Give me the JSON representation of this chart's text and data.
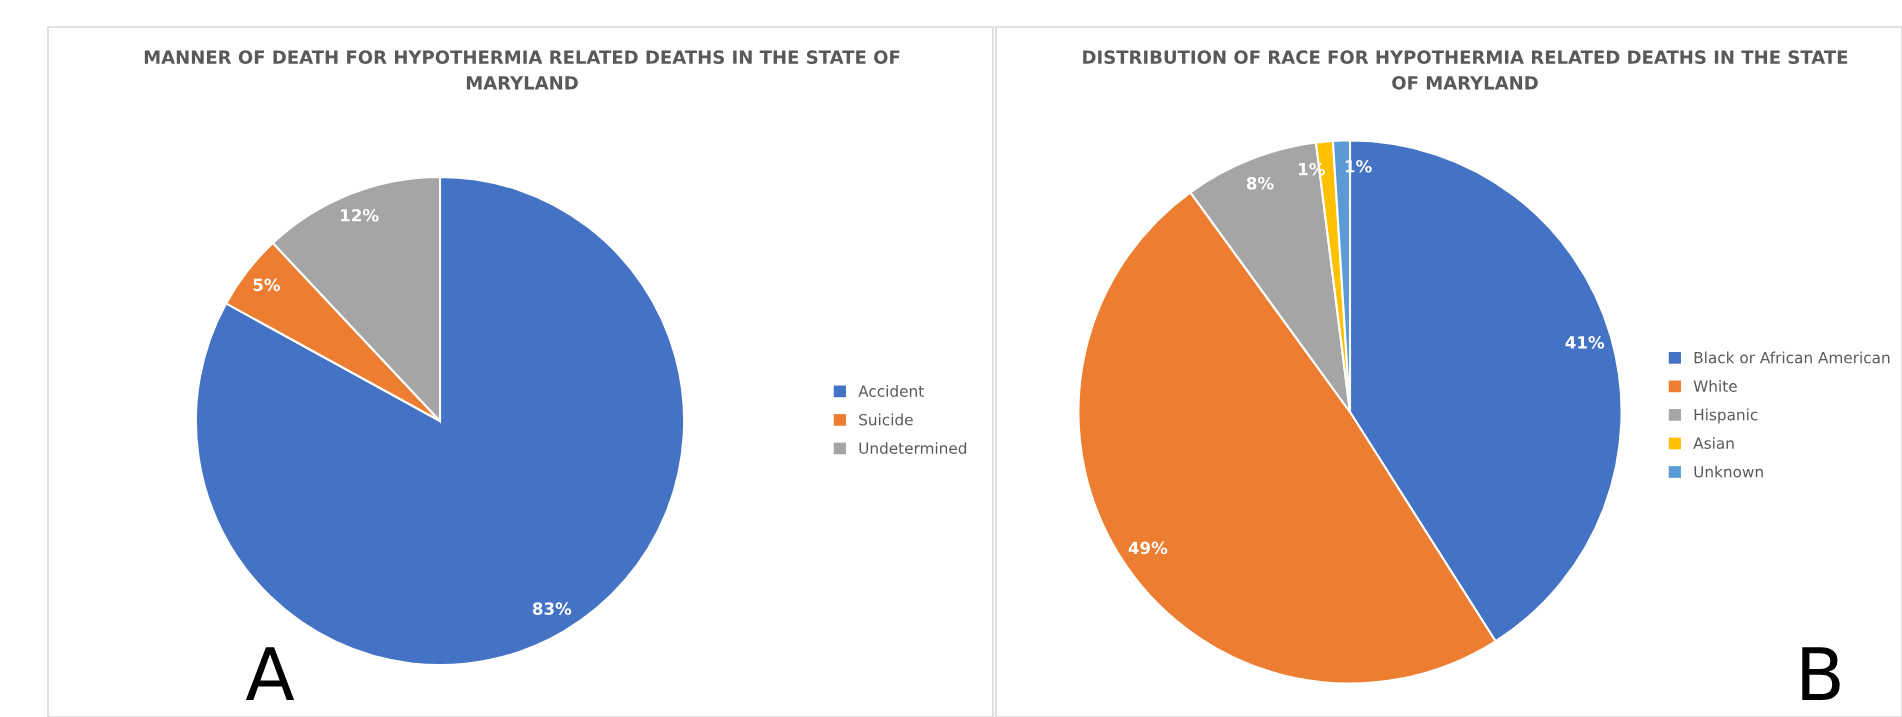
{
  "chart_data": [
    {
      "type": "pie",
      "title": "MANNER OF DEATH FOR HYPOTHERMIA RELATED DEATHS IN THE STATE OF MARYLAND",
      "categories": [
        "Accident",
        "Suicide",
        "Undetermined"
      ],
      "values": [
        83,
        5,
        12
      ],
      "colors": [
        "#4472c4",
        "#ed7d31",
        "#a5a5a5"
      ],
      "value_labels": [
        "83%",
        "5%",
        "12%"
      ],
      "legend": "right",
      "annotations": [
        "A"
      ]
    },
    {
      "type": "pie",
      "title": "DISTRIBUTION OF RACE FOR HYPOTHERMIA RELATED DEATHS IN THE STATE OF MARYLAND",
      "categories": [
        "Black or African American",
        "White",
        "Hispanic",
        "Asian",
        "Unknown"
      ],
      "values": [
        41,
        49,
        8,
        1,
        1
      ],
      "colors": [
        "#4472c4",
        "#ed7d31",
        "#a5a5a5",
        "#ffc000",
        "#5b9bd5"
      ],
      "value_labels": [
        "41%",
        "49%",
        "8%",
        "1%",
        "1%"
      ],
      "legend": "right",
      "annotations": [
        "B"
      ]
    }
  ]
}
